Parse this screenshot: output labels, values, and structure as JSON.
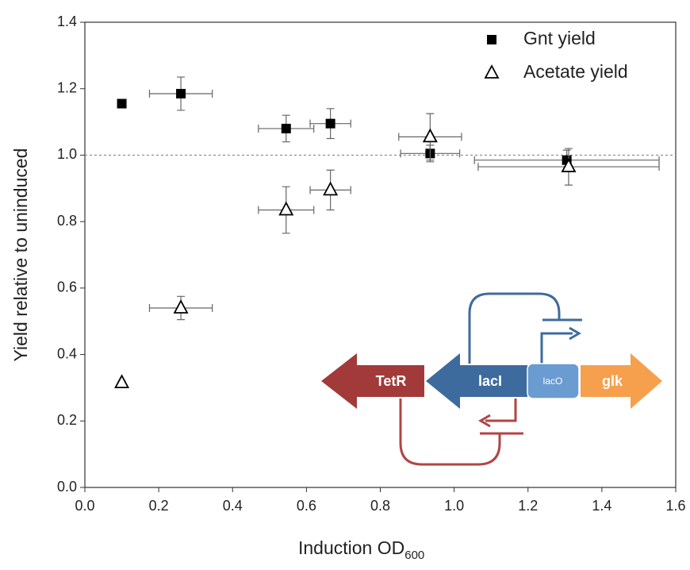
{
  "chart_data": {
    "type": "scatter",
    "y_label": "Yield relative to uninduced",
    "x_label": "Induction OD",
    "x_label_sub": "600",
    "xlim": [
      0,
      1.6
    ],
    "ylim": [
      0,
      1.4
    ],
    "xticks": [
      {
        "value": 0,
        "label": "0.0"
      },
      0.2,
      0.4,
      0.6,
      0.8,
      {
        "value": 1,
        "label": "1.0"
      },
      1.2,
      1.4,
      1.6
    ],
    "yticks": [
      {
        "value": 0,
        "label": "0.0"
      },
      0.2,
      0.4,
      0.6,
      0.8,
      {
        "value": 1,
        "label": "1.0"
      },
      1.2,
      1.4
    ],
    "reference_line": 1.0,
    "legend": "upper right",
    "series": [
      {
        "name": "Gnt yield",
        "marker": "square",
        "color": "#000000",
        "x": [
          0.1,
          0.26,
          0.545,
          0.665,
          0.935,
          1.305
        ],
        "values": [
          1.155,
          1.185,
          1.08,
          1.095,
          1.005,
          0.985
        ],
        "xerr": [
          0.01,
          0.085,
          0.075,
          0.055,
          0.08,
          0.25
        ],
        "yerr": [
          0.01,
          0.05,
          0.04,
          0.045,
          0.025,
          0.03
        ]
      },
      {
        "name": "Acetate yield",
        "marker": "open-triangle",
        "color": "#000000",
        "x": [
          0.1,
          0.26,
          0.545,
          0.665,
          0.935,
          1.31
        ],
        "values": [
          0.315,
          0.54,
          0.835,
          0.895,
          1.055,
          0.965
        ],
        "xerr": [
          0.005,
          0.085,
          0.075,
          0.055,
          0.085,
          0.245
        ],
        "yerr": [
          0.005,
          0.035,
          0.07,
          0.06,
          0.07,
          0.055
        ]
      }
    ],
    "inset": {
      "labels": [
        "TetR",
        "lacI",
        "lacO",
        "glk"
      ]
    }
  }
}
